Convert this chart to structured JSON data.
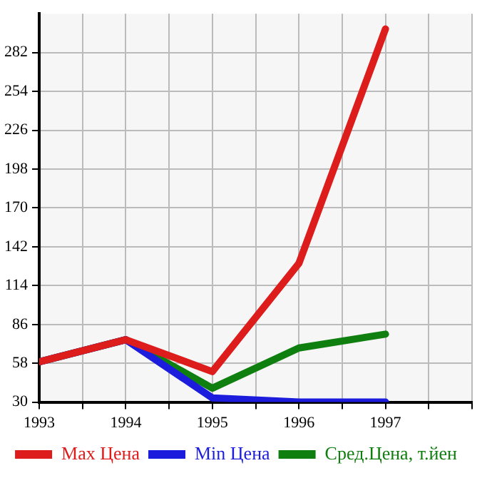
{
  "chart_data": {
    "type": "line",
    "x": [
      1993,
      1994,
      1995,
      1996,
      1997
    ],
    "series": [
      {
        "name": "Max Цена",
        "color": "#dd1c1c",
        "values": [
          59,
          75,
          52,
          130,
          299
        ]
      },
      {
        "name": "Min Цена",
        "color": "#1c1cdd",
        "values": [
          59,
          75,
          33,
          30,
          30
        ]
      },
      {
        "name": "Сред.Цена, т.йен",
        "color": "#0f7f0f",
        "values": [
          59,
          75,
          40,
          69,
          79
        ]
      }
    ],
    "xlim": [
      1993,
      1998
    ],
    "xticks": [
      1993,
      {
        "value": 1993.5,
        "label": null
      },
      1994,
      {
        "value": 1994.5,
        "label": null
      },
      1995,
      {
        "value": 1995.5,
        "label": null
      },
      1996,
      {
        "value": 1996.5,
        "label": null
      },
      1997,
      {
        "value": 1997.5,
        "label": null
      },
      {
        "value": 1998,
        "label": null
      }
    ],
    "ylim": [
      30,
      310
    ],
    "yticks": [
      30,
      58,
      86,
      114,
      142,
      170,
      198,
      226,
      254,
      282
    ],
    "grid": true,
    "legend": "bottom",
    "marker": "none",
    "line_style": "solid"
  }
}
